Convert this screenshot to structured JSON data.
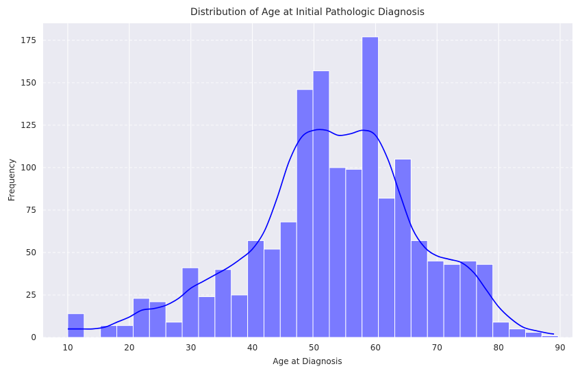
{
  "chart_data": {
    "type": "bar",
    "subtype": "histogram-with-kde",
    "title": "Distribution of Age at Initial Pathologic Diagnosis",
    "xlabel": "Age at Diagnosis",
    "ylabel": "Frequency",
    "xlim": [
      6,
      92
    ],
    "ylim": [
      0,
      185
    ],
    "x_ticks": [
      10,
      20,
      30,
      40,
      50,
      60,
      70,
      80,
      90
    ],
    "y_ticks": [
      0,
      25,
      50,
      75,
      100,
      125,
      150,
      175
    ],
    "grid": true,
    "bin_edges": [
      10,
      12.66,
      15.31,
      17.97,
      20.63,
      23.28,
      25.94,
      28.59,
      31.25,
      33.91,
      36.56,
      39.22,
      41.88,
      44.53,
      47.19,
      49.84,
      52.5,
      55.16,
      57.81,
      60.47,
      63.13,
      65.78,
      68.44,
      71.09,
      73.75,
      76.41,
      79.06,
      81.72,
      84.38,
      87.03,
      89.69
    ],
    "counts": [
      14,
      0,
      7,
      7,
      23,
      21,
      9,
      41,
      24,
      40,
      25,
      57,
      52,
      68,
      146,
      157,
      100,
      99,
      177,
      82,
      105,
      57,
      45,
      43,
      45,
      43,
      9,
      5,
      3,
      1
    ],
    "kde": {
      "x": [
        10,
        12,
        14,
        16,
        18,
        20,
        22,
        24,
        26,
        28,
        30,
        32,
        34,
        36,
        38,
        40,
        42,
        44,
        46,
        48,
        50,
        52,
        54,
        56,
        58,
        60,
        62,
        64,
        66,
        68,
        70,
        72,
        74,
        76,
        78,
        80,
        82,
        84,
        86,
        88,
        89
      ],
      "y": [
        5,
        5,
        5,
        6,
        9,
        12,
        16,
        17,
        19,
        23,
        29,
        33,
        37,
        41,
        46,
        52,
        63,
        82,
        104,
        118,
        122,
        122,
        119,
        120,
        122,
        119,
        105,
        84,
        64,
        53,
        48,
        46,
        44,
        38,
        28,
        18,
        11,
        6,
        4,
        2.5,
        2
      ]
    },
    "colors": {
      "bar_fill": "#7a7aff",
      "bar_stroke": "#ffffff",
      "kde_line": "#0000ff",
      "plot_bg": "#eaeaf2",
      "grid": "#ffffff"
    }
  }
}
